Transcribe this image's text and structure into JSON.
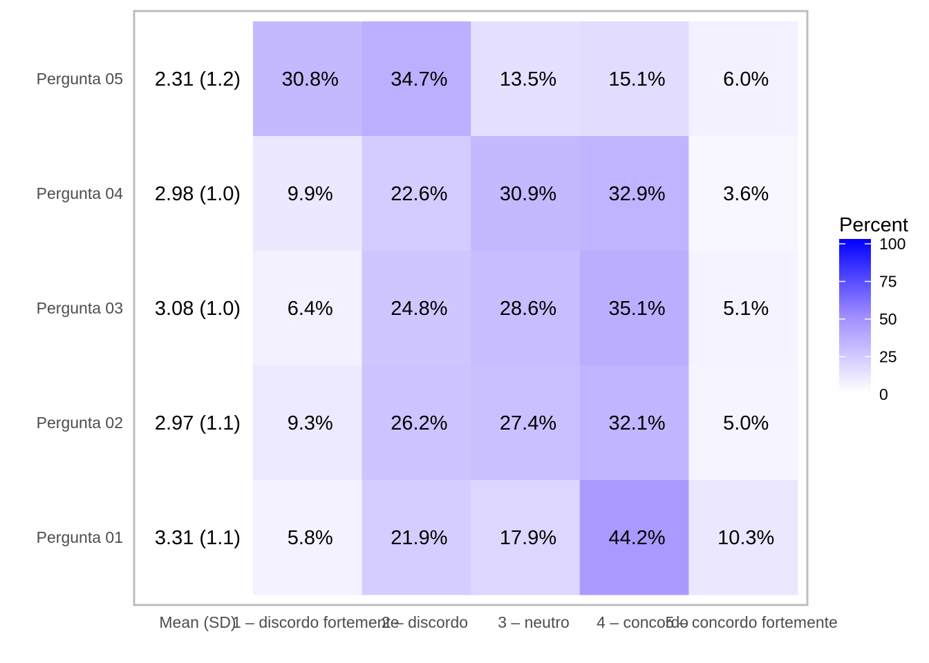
{
  "chart_data": {
    "type": "heatmap",
    "title": "",
    "xlabel": "",
    "ylabel": "",
    "columns": [
      "Mean (SD)",
      "1 – discordo fortemente",
      "2 – discordo",
      "3 – neutro",
      "4 – concordo",
      "5 – concordo fortemente"
    ],
    "rows": [
      {
        "label": "Pergunta 05",
        "mean_sd": "2.31 (1.2)",
        "values": [
          30.8,
          34.7,
          13.5,
          15.1,
          6.0
        ],
        "labels": [
          "30.8%",
          "34.7%",
          "13.5%",
          "15.1%",
          "6.0%"
        ]
      },
      {
        "label": "Pergunta 04",
        "mean_sd": "2.98 (1.0)",
        "values": [
          9.9,
          22.6,
          30.9,
          32.9,
          3.6
        ],
        "labels": [
          "9.9%",
          "22.6%",
          "30.9%",
          "32.9%",
          "3.6%"
        ]
      },
      {
        "label": "Pergunta 03",
        "mean_sd": "3.08 (1.0)",
        "values": [
          6.4,
          24.8,
          28.6,
          35.1,
          5.1
        ],
        "labels": [
          "6.4%",
          "24.8%",
          "28.6%",
          "35.1%",
          "5.1%"
        ]
      },
      {
        "label": "Pergunta 02",
        "mean_sd": "2.97 (1.1)",
        "values": [
          9.3,
          26.2,
          27.4,
          32.1,
          5.0
        ],
        "labels": [
          "9.3%",
          "26.2%",
          "27.4%",
          "32.1%",
          "5.0%"
        ]
      },
      {
        "label": "Pergunta 01",
        "mean_sd": "3.31 (1.1)",
        "values": [
          5.8,
          21.9,
          17.9,
          44.2,
          10.3
        ],
        "labels": [
          "5.8%",
          "21.9%",
          "17.9%",
          "44.2%",
          "10.3%"
        ]
      }
    ],
    "legend": {
      "title": "Percent",
      "placement": "right",
      "range": [
        0,
        100
      ],
      "ticks": [
        0,
        25,
        50,
        75,
        100
      ],
      "low_color": "#ffffff",
      "high_color": "#0000ff"
    }
  }
}
